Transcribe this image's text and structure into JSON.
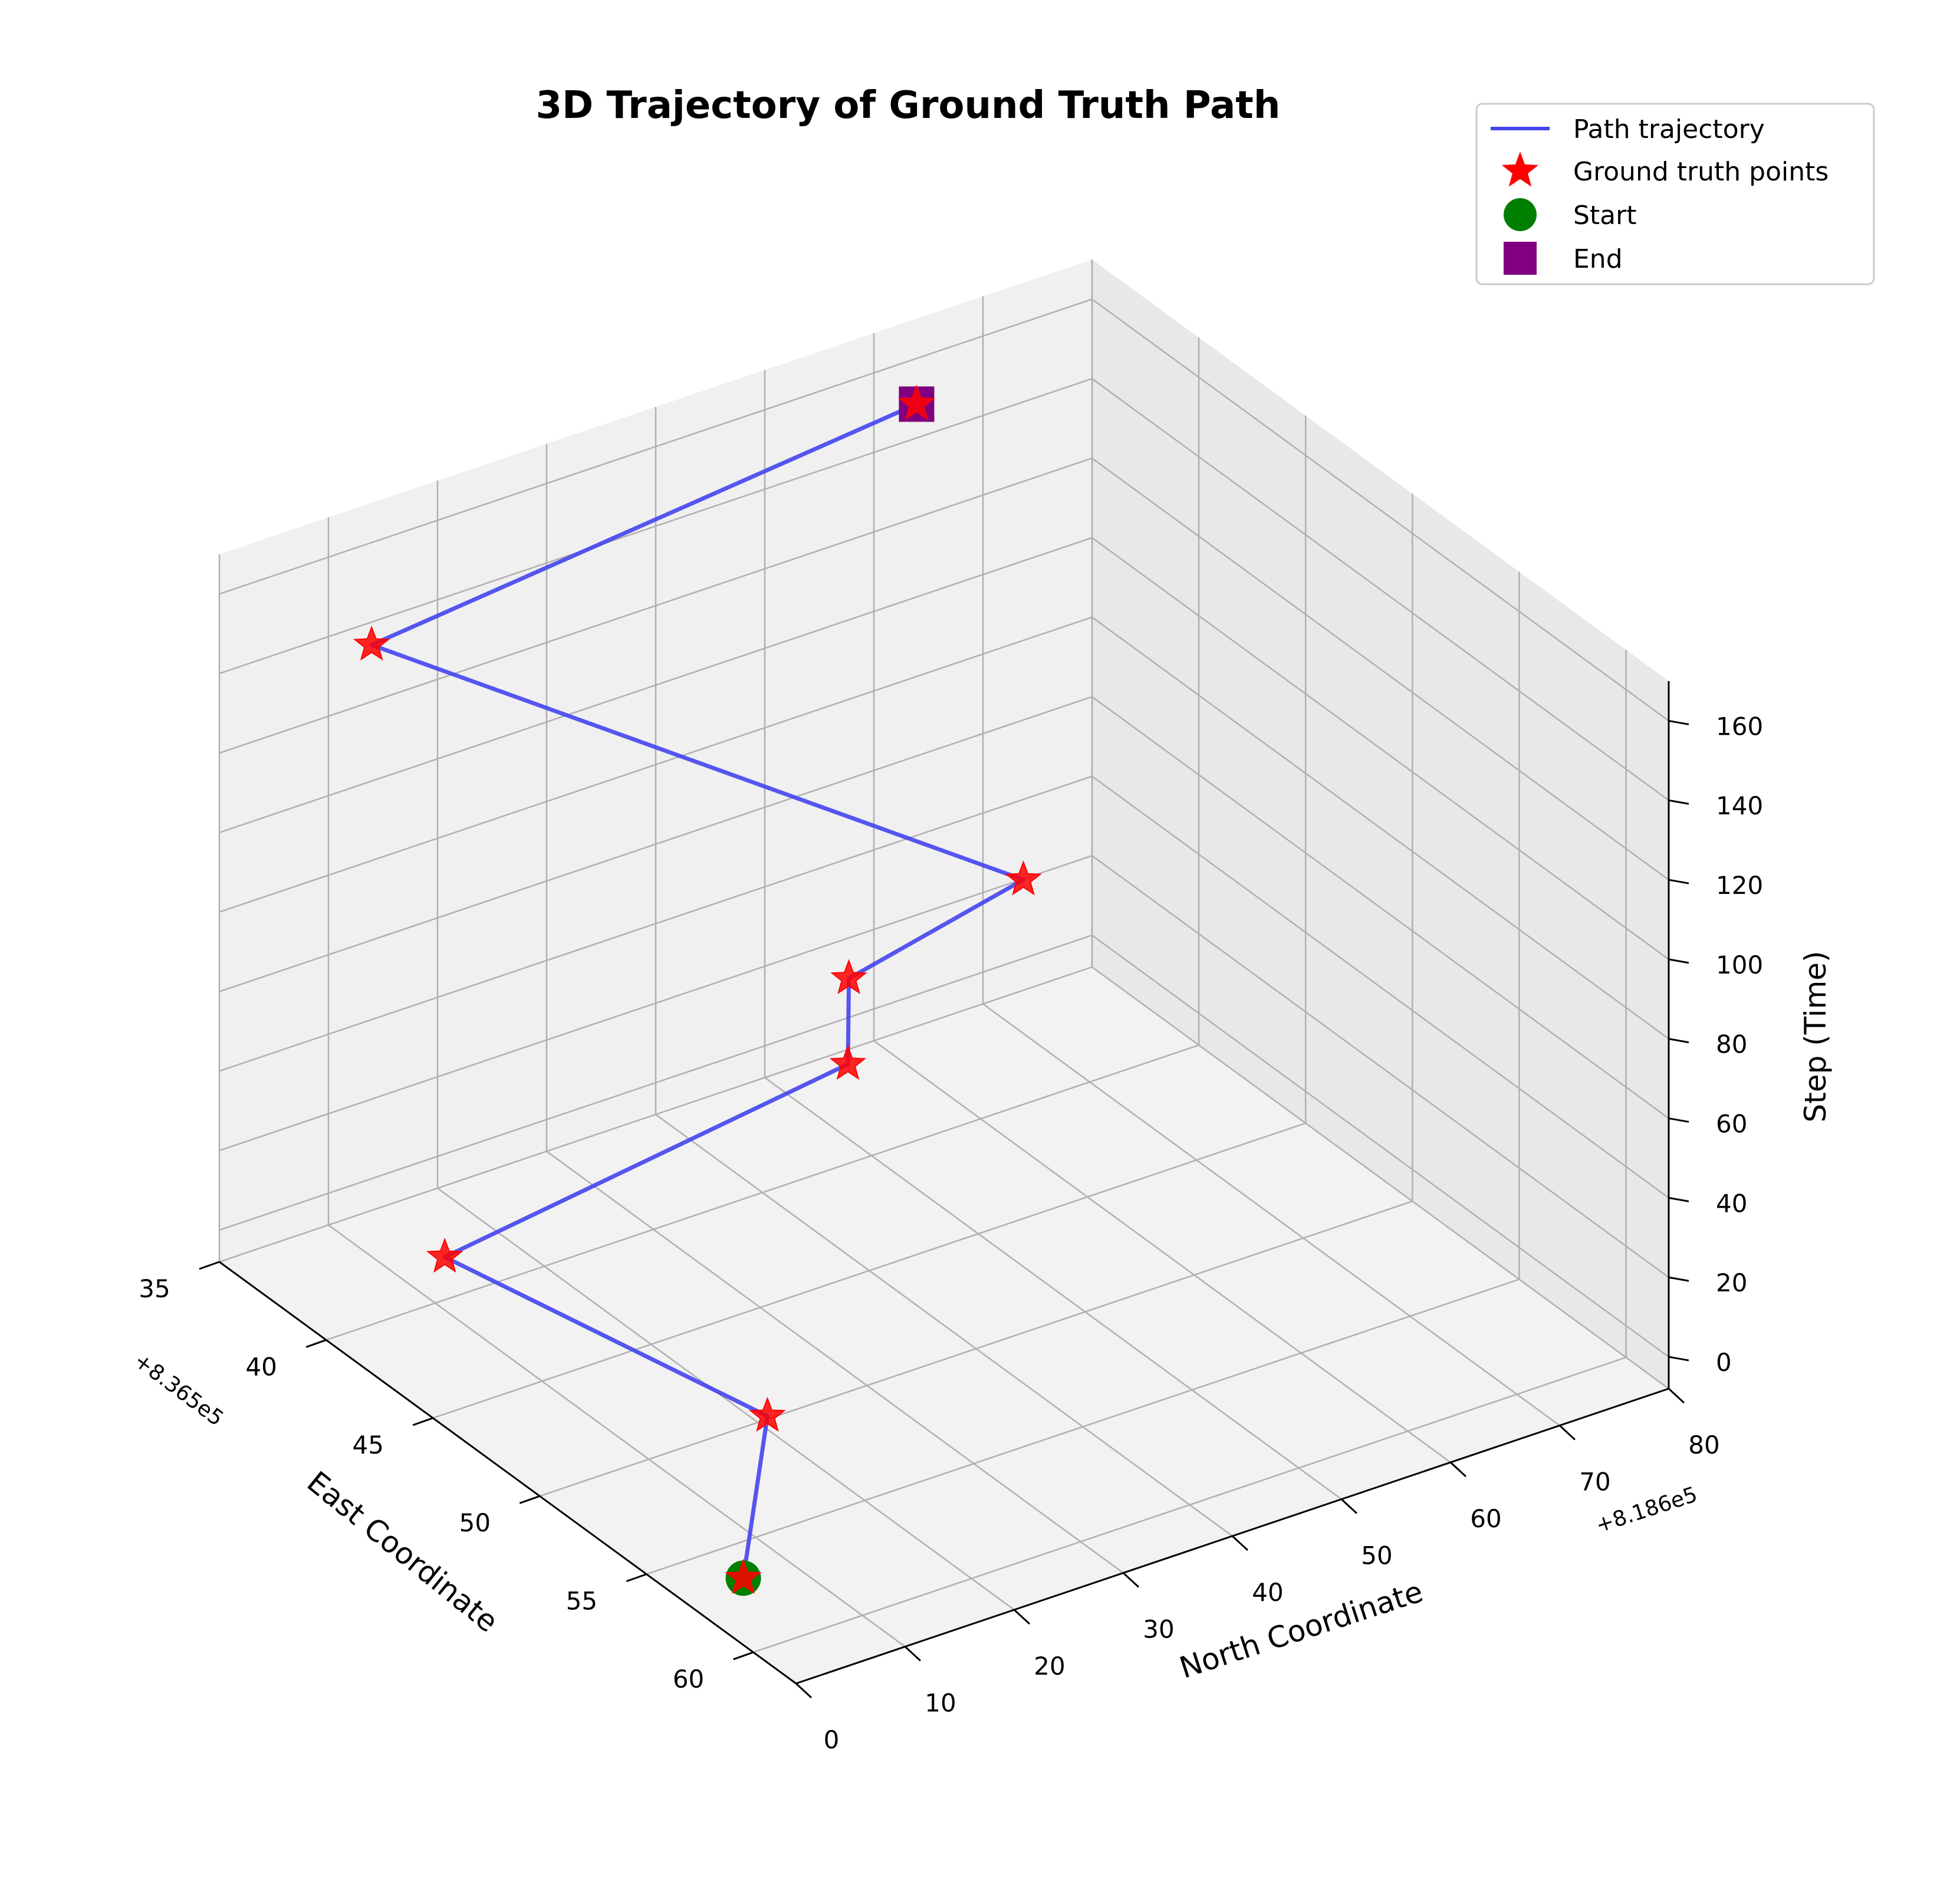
{
  "chart_data": {
    "type": "line3d",
    "title": "3D Trajectory of Ground Truth Path",
    "xlabel": "East Coordinate",
    "ylabel": "North Coordinate",
    "zlabel": "Step (Time)",
    "x_offset_label": "+8.365e5",
    "y_offset_label": "+8.186e5",
    "xlim": [
      35,
      62
    ],
    "ylim": [
      0,
      80
    ],
    "zlim": [
      -8,
      170
    ],
    "x_ticks": [
      35,
      40,
      45,
      50,
      55,
      60
    ],
    "y_ticks": [
      0,
      10,
      20,
      30,
      40,
      50,
      60,
      70,
      80
    ],
    "z_ticks": [
      0,
      20,
      40,
      60,
      80,
      100,
      120,
      140,
      160
    ],
    "grid": true,
    "legend_position": "top-right",
    "legend": [
      {
        "label": "Path trajectory",
        "marker": "line",
        "color": "#4444ee"
      },
      {
        "label": "Ground truth points",
        "marker": "star",
        "color": "#ff0000"
      },
      {
        "label": "Start",
        "marker": "circle",
        "color": "#008000"
      },
      {
        "label": "End",
        "marker": "square",
        "color": "#800080"
      }
    ],
    "series": [
      {
        "name": "Path trajectory",
        "color": "#4444ee",
        "points": [
          {
            "x": 58,
            "y": 3,
            "z": 0
          },
          {
            "x": 53,
            "y": 15,
            "z": 10
          },
          {
            "x": 43,
            "y": 5,
            "z": 20
          },
          {
            "x": 44,
            "y": 40,
            "z": 40
          },
          {
            "x": 42,
            "y": 44,
            "z": 50
          },
          {
            "x": 42,
            "y": 60,
            "z": 60
          },
          {
            "x": 36,
            "y": 12,
            "z": 140
          },
          {
            "x": 37,
            "y": 60,
            "z": 160
          }
        ]
      }
    ],
    "start_point": {
      "x": 58,
      "y": 3,
      "z": 0
    },
    "end_point": {
      "x": 37,
      "y": 60,
      "z": 160
    }
  }
}
